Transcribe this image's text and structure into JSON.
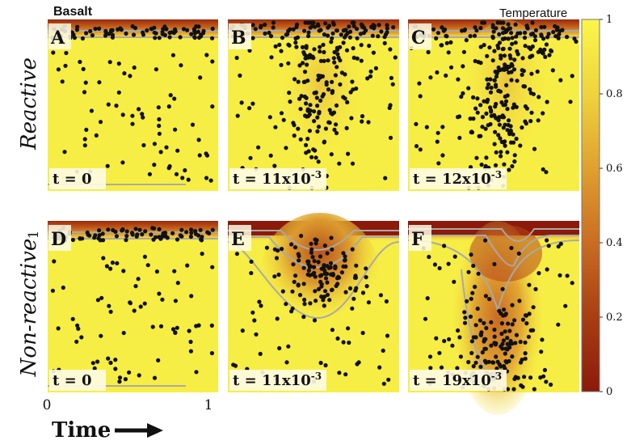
{
  "figure": {
    "top_left_label": "Basalt",
    "colorbar_title": "Temperature",
    "colorbar_ticks": [
      "1",
      "0.8",
      "0.6",
      "0.4",
      "0.2",
      "0"
    ],
    "colors": {
      "hot": "#8b1a0a",
      "warm": "#c0561a",
      "mid": "#e0a030",
      "cool": "#f7ee45",
      "contour": "#a9a9a9",
      "dot": "#111111"
    },
    "row_labels": {
      "reactive": "Reactive",
      "nonreactive": "Non-reactive"
    },
    "axis": {
      "y_tick": "1",
      "x_tick_0": "0",
      "x_tick_1": "1",
      "time_label": "Time"
    },
    "panels": [
      {
        "label": "A",
        "time_prefix": "t = ",
        "time_value": "0",
        "time_exp": ""
      },
      {
        "label": "B",
        "time_prefix": "t = ",
        "time_value": "11x10",
        "time_exp": "-3"
      },
      {
        "label": "C",
        "time_prefix": "t = ",
        "time_value": "12x10",
        "time_exp": "-3"
      },
      {
        "label": "D",
        "time_prefix": "t = ",
        "time_value": "0",
        "time_exp": ""
      },
      {
        "label": "E",
        "time_prefix": "t = ",
        "time_value": "11x10",
        "time_exp": "-3"
      },
      {
        "label": "F",
        "time_prefix": "t = ",
        "time_value": "19x10",
        "time_exp": "-3"
      }
    ]
  }
}
